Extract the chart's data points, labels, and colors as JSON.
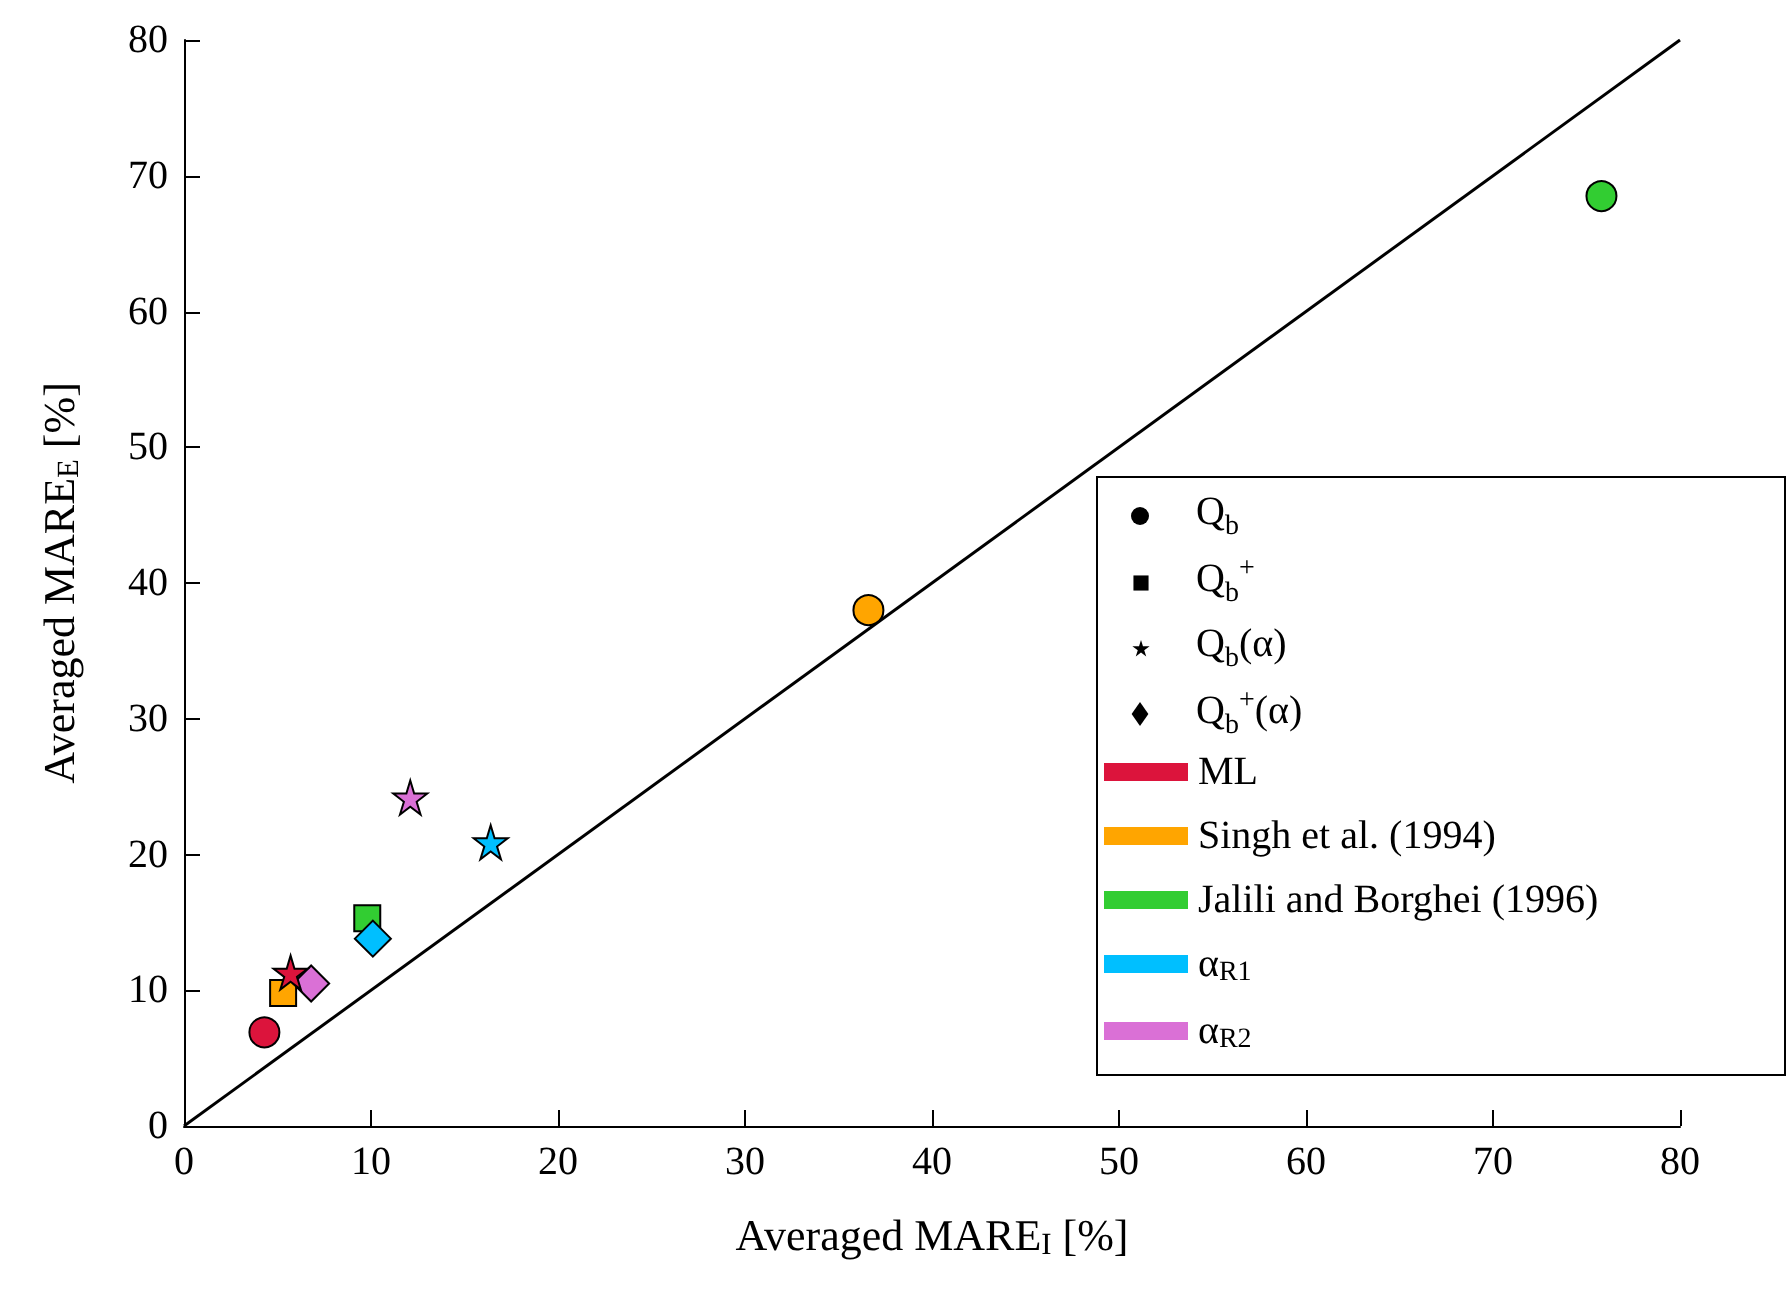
{
  "chart_data": {
    "type": "scatter",
    "xlabel": "Averaged MARE$_{I}$ [%]",
    "ylabel": "Averaged MARE$_{E}$ [%]",
    "xlim": [
      0,
      80
    ],
    "ylim": [
      0,
      80
    ],
    "xticks": [
      0,
      10,
      20,
      30,
      40,
      50,
      60,
      70,
      80
    ],
    "yticks": [
      0,
      10,
      20,
      30,
      40,
      50,
      60,
      70,
      80
    ],
    "grid": false,
    "legend": "right",
    "annotations": [
      "Q$_{b}$",
      "Q$_{b}$$^{+}$",
      "Q$_{b}$(α)",
      "Q$_{b}$$^{+}$(α)"
    ],
    "series": [
      {
        "name": "ML",
        "marker": "circle",
        "color": "#dc143c",
        "x": [
          4.3
        ],
        "values": [
          6.9
        ]
      },
      {
        "name": "Singh et al. (1994)",
        "marker": "square",
        "color": "#ffa500",
        "x": [
          5.3
        ],
        "values": [
          9.8
        ]
      },
      {
        "name": "Jalili and Borghei (1996)",
        "marker": "square",
        "color": "#32cd32",
        "x": [
          9.8
        ],
        "values": [
          15.3
        ]
      },
      {
        "name": "α$_{R1}$",
        "marker": "star",
        "color": "#00bfff",
        "x": [
          16.4
        ],
        "values": [
          20.9
        ]
      },
      {
        "name": "α$_{R2}$",
        "marker": "diamond",
        "color": "#da70d6",
        "x": [
          6.8
        ],
        "values": [
          10.5
        ]
      },
      {
        "marker": "star",
        "color": "#dc143c",
        "x": [
          5.7
        ],
        "values": [
          11.3
        ]
      },
      {
        "marker": "circle",
        "color": "#ffa500",
        "x": [
          36.6
        ],
        "values": [
          38.0
        ]
      },
      {
        "marker": "circle",
        "color": "#32cd32",
        "x": [
          75.8
        ],
        "values": [
          68.5
        ]
      },
      {
        "marker": "diamond",
        "color": "#00bfff",
        "x": [
          10.1
        ],
        "values": [
          13.8
        ]
      },
      {
        "marker": "star",
        "color": "#da70d6",
        "x": [
          12.1
        ],
        "values": [
          24.2
        ]
      },
      {
        "type": "line",
        "color": "#000000",
        "marker": "none",
        "x": [
          0,
          80
        ],
        "values": [
          0,
          80
        ]
      }
    ]
  }
}
